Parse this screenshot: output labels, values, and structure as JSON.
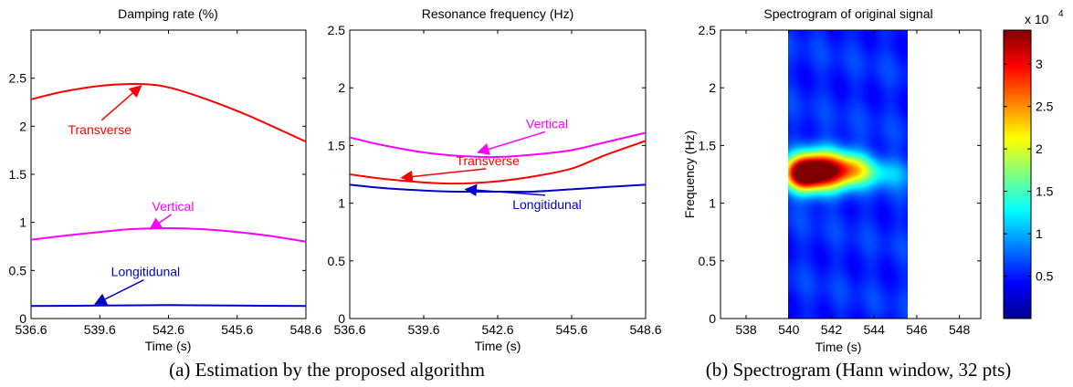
{
  "chart_data": [
    {
      "type": "line",
      "title": "Damping rate (%)",
      "xlabel": "Time (s)",
      "ylabel": "",
      "xlim": [
        536.6,
        548.6
      ],
      "ylim": [
        0,
        3
      ],
      "xticks": [
        "536.6",
        "539.6",
        "542.6",
        "545.6",
        "548.6"
      ],
      "yticks": [
        "0",
        "0.5",
        "1",
        "1.5",
        "2",
        "2.5"
      ],
      "series": [
        {
          "name": "Transverse",
          "color": "#ff0000",
          "x": [
            536.6,
            538,
            539.6,
            541,
            542,
            543,
            544.5,
            546,
            547.5,
            548.6
          ],
          "y": [
            2.28,
            2.36,
            2.42,
            2.44,
            2.43,
            2.38,
            2.26,
            2.12,
            1.96,
            1.84
          ]
        },
        {
          "name": "Vertical",
          "color": "#ff00ff",
          "x": [
            536.6,
            538,
            539.6,
            541,
            542.6,
            544,
            545.6,
            547,
            548.6
          ],
          "y": [
            0.82,
            0.86,
            0.9,
            0.93,
            0.94,
            0.93,
            0.9,
            0.86,
            0.8
          ]
        },
        {
          "name": "Longitidunal",
          "color": "#0000cc",
          "x": [
            536.6,
            539.6,
            542.6,
            545.6,
            548.6
          ],
          "y": [
            0.13,
            0.135,
            0.14,
            0.135,
            0.13
          ]
        }
      ],
      "annotations": [
        {
          "text": "Transverse",
          "color": "#ff0000",
          "x": 539.6,
          "y": 1.92,
          "point": [
            541.4,
            2.42
          ]
        },
        {
          "text": "Vertical",
          "color": "#ff00ff",
          "x": 542.8,
          "y": 1.12,
          "point": [
            541.8,
            0.93
          ]
        },
        {
          "text": "Longitidunal",
          "color": "#0000cc",
          "x": 541.6,
          "y": 0.44,
          "point": [
            539.4,
            0.15
          ]
        }
      ]
    },
    {
      "type": "line",
      "title": "Resonance frequency (Hz)",
      "xlabel": "Time (s)",
      "ylabel": "",
      "xlim": [
        536.6,
        548.6
      ],
      "ylim": [
        0,
        2.5
      ],
      "xticks": [
        "536.6",
        "539.6",
        "542.6",
        "545.6",
        "548.6"
      ],
      "yticks": [
        "0",
        "0.5",
        "1",
        "1.5",
        "2",
        "2.5"
      ],
      "series": [
        {
          "name": "Vertical",
          "color": "#ff00ff",
          "x": [
            536.6,
            538,
            539.6,
            541,
            542.6,
            544,
            545.6,
            547,
            548.6
          ],
          "y": [
            1.57,
            1.5,
            1.44,
            1.41,
            1.4,
            1.42,
            1.46,
            1.53,
            1.61
          ]
        },
        {
          "name": "Transverse",
          "color": "#ff0000",
          "x": [
            536.6,
            538,
            539.6,
            541,
            542.6,
            544,
            545.6,
            547,
            548.6
          ],
          "y": [
            1.25,
            1.21,
            1.18,
            1.17,
            1.19,
            1.23,
            1.3,
            1.42,
            1.54
          ]
        },
        {
          "name": "Longitidunal",
          "color": "#0000cc",
          "x": [
            536.6,
            538,
            539.6,
            541,
            542.6,
            544,
            545.6,
            547,
            548.6
          ],
          "y": [
            1.16,
            1.13,
            1.11,
            1.1,
            1.1,
            1.1,
            1.12,
            1.14,
            1.16
          ]
        }
      ],
      "annotations": [
        {
          "text": "Vertical",
          "color": "#ff00ff",
          "x": 544.6,
          "y": 1.65,
          "point": [
            541.8,
            1.44
          ]
        },
        {
          "text": "Transverse",
          "color": "#ff0000",
          "x": 542.2,
          "y": 1.33,
          "point": [
            538.7,
            1.22
          ]
        },
        {
          "text": "Longitidunal",
          "color": "#0000cc",
          "x": 544.6,
          "y": 0.95,
          "point": [
            541.3,
            1.12
          ]
        }
      ]
    },
    {
      "type": "heatmap",
      "title": "Spectrogram of original signal",
      "xlabel": "Time (s)",
      "ylabel": "Frequency (Hz)",
      "xlim": [
        536.8,
        549
      ],
      "ylim": [
        0,
        2.5
      ],
      "xticks": [
        "538",
        "540",
        "542",
        "544",
        "546",
        "548"
      ],
      "yticks": [
        "0",
        "0.5",
        "1",
        "1.5",
        "2",
        "2.5"
      ],
      "data_x_range": [
        539.8,
        545.4
      ],
      "colorbar": {
        "exponent": "x 10",
        "power": "4",
        "ticks": [
          "0.5",
          "1",
          "1.5",
          "2",
          "2.5",
          "3"
        ],
        "range": [
          0,
          34000
        ]
      },
      "blobs": [
        {
          "x": 541.4,
          "y": 1.28,
          "sx": 0.9,
          "sy": 0.12,
          "amp": 1.0
        },
        {
          "x": 540.4,
          "y": 1.25,
          "sx": 0.6,
          "sy": 0.1,
          "amp": 0.75
        },
        {
          "x": 542.9,
          "y": 1.3,
          "sx": 0.7,
          "sy": 0.1,
          "amp": 0.35
        },
        {
          "x": 544.3,
          "y": 1.26,
          "sx": 1.2,
          "sy": 0.09,
          "amp": 0.2
        }
      ]
    }
  ],
  "captions": {
    "a": "(a) Estimation  by the proposed algorithm",
    "b": "(b) Spectrogram (Hann window, 32 pts)"
  }
}
